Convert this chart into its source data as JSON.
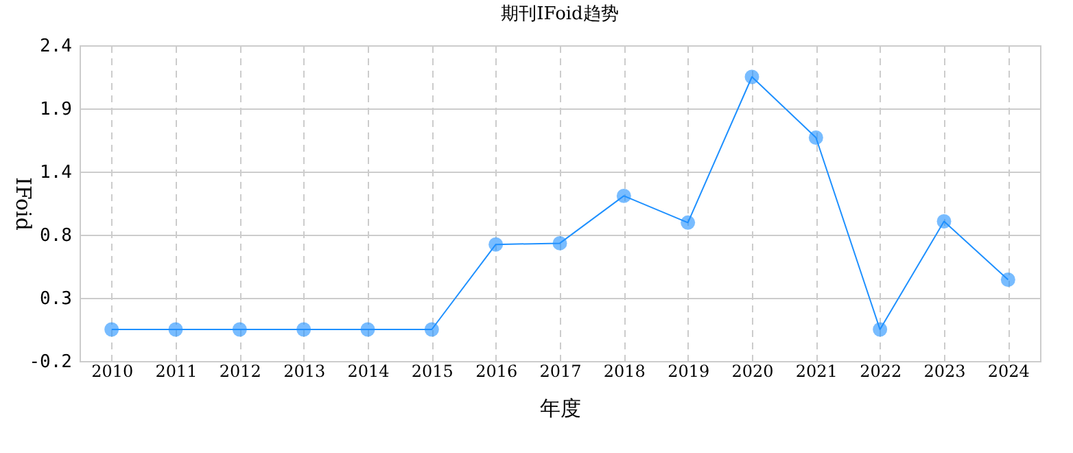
{
  "chart_data": {
    "type": "line",
    "title": "期刊IFoid趋势",
    "xlabel": "年度",
    "ylabel": "IFoid",
    "categories": [
      "2010",
      "2011",
      "2012",
      "2013",
      "2014",
      "2015",
      "2016",
      "2017",
      "2018",
      "2019",
      "2020",
      "2021",
      "2022",
      "2023",
      "2024"
    ],
    "series": [
      {
        "color": "#1e90ff",
        "values": [
          0.06,
          0.06,
          0.06,
          0.06,
          0.06,
          0.06,
          0.76,
          0.77,
          1.16,
          0.94,
          2.14,
          1.64,
          0.06,
          0.95,
          0.47
        ]
      }
    ],
    "ylim": [
      -0.2,
      2.4
    ],
    "yticks": [
      -0.2,
      {
        "value": 0.32,
        "label": "0.3"
      },
      {
        "value": 0.84,
        "label": "0.8"
      },
      {
        "value": 1.36,
        "label": "1.4"
      },
      {
        "value": 1.88,
        "label": "1.9"
      },
      2.4
    ],
    "grid": true,
    "marker": "circle",
    "line_style": "solid"
  }
}
